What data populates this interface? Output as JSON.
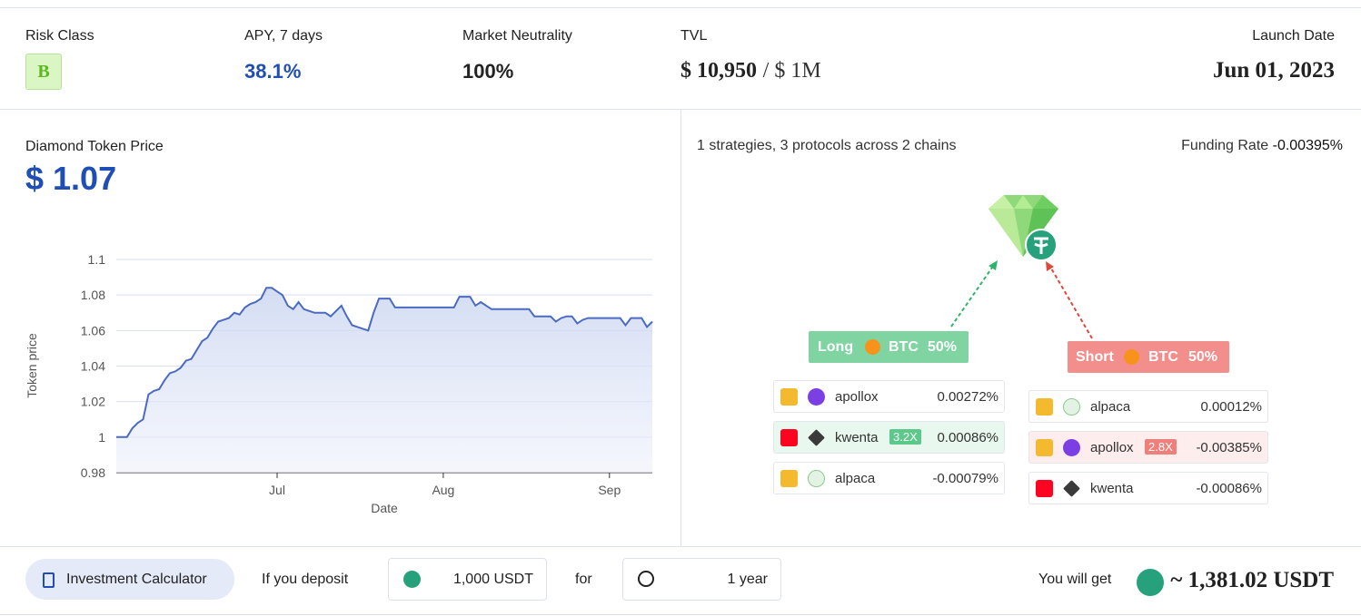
{
  "stats": [
    {
      "label": "Risk Class",
      "value": "B"
    },
    {
      "label": "APY, 7 days",
      "value": "38.1%"
    },
    {
      "label": "Market Neutrality",
      "value": "100%"
    },
    {
      "label": "TVL",
      "value": "$ 10,950",
      "cap": "/ $ 1M"
    },
    {
      "label": "Launch Date",
      "value": "Jun 01, 2023"
    }
  ],
  "price": {
    "label": "Diamond Token Price",
    "value": "$ 1.07"
  },
  "chart_data": {
    "type": "line",
    "x_label": "Date",
    "y_label": "Token price",
    "categories": [
      null,
      null,
      null,
      null,
      null,
      null,
      null,
      null,
      null,
      null,
      null,
      null,
      null,
      null,
      null,
      null,
      null,
      null,
      null,
      null,
      null,
      null,
      null,
      null,
      null,
      null,
      null,
      null,
      null,
      null,
      "Jul",
      null,
      null,
      null,
      null,
      null,
      null,
      null,
      null,
      null,
      null,
      null,
      null,
      null,
      null,
      null,
      null,
      null,
      null,
      null,
      null,
      null,
      null,
      null,
      null,
      null,
      null,
      null,
      null,
      null,
      null,
      "Aug",
      null,
      null,
      null,
      null,
      null,
      null,
      null,
      null,
      null,
      null,
      null,
      null,
      null,
      null,
      null,
      null,
      null,
      null,
      null,
      null,
      null,
      null,
      null,
      null,
      null,
      null,
      null,
      null,
      null,
      null,
      "Sep",
      null,
      null,
      null,
      null,
      null,
      null,
      null,
      null
    ],
    "series": [
      {
        "name": "Token price",
        "color": "#4a6bc1",
        "values": [
          1.0,
          1.0,
          1.0,
          1.005,
          1.008,
          1.01,
          1.024,
          1.026,
          1.027,
          1.032,
          1.036,
          1.037,
          1.039,
          1.043,
          1.044,
          1.049,
          1.054,
          1.056,
          1.061,
          1.065,
          1.066,
          1.067,
          1.07,
          1.069,
          1.073,
          1.075,
          1.076,
          1.078,
          1.084,
          1.084,
          1.082,
          1.08,
          1.074,
          1.072,
          1.076,
          1.072,
          1.071,
          1.07,
          1.07,
          1.07,
          1.068,
          1.071,
          1.074,
          1.068,
          1.063,
          1.062,
          1.061,
          1.06,
          1.07,
          1.078,
          1.078,
          1.078,
          1.073,
          1.073,
          1.073,
          1.073,
          1.073,
          1.073,
          1.073,
          1.073,
          1.073,
          1.073,
          1.073,
          1.073,
          1.079,
          1.079,
          1.079,
          1.074,
          1.076,
          1.074,
          1.072,
          1.072,
          1.072,
          1.072,
          1.072,
          1.072,
          1.072,
          1.072,
          1.068,
          1.068,
          1.068,
          1.068,
          1.065,
          1.067,
          1.068,
          1.068,
          1.064,
          1.066,
          1.067,
          1.067,
          1.067,
          1.067,
          1.067,
          1.067,
          1.067,
          1.063,
          1.067,
          1.067,
          1.067,
          1.062,
          1.065
        ]
      }
    ],
    "ylim": [
      0.98,
      1.1
    ],
    "yticks": [
      0.98,
      1,
      1.02,
      1.04,
      1.06,
      1.08,
      1.1
    ],
    "grid": true
  },
  "strategy": {
    "summary": "1 strategies, 3 protocols across 2 chains",
    "funding_label": "Funding Rate",
    "funding_value": "-0.00395%"
  },
  "long": {
    "label": "Long",
    "asset": "BTC",
    "share": "50%",
    "protocols": [
      {
        "name": "apollox",
        "rate": "0.00272%"
      },
      {
        "name": "kwenta",
        "leverage": "3.2X",
        "rate": "0.00086%"
      },
      {
        "name": "alpaca",
        "rate": "-0.00079%"
      }
    ]
  },
  "short": {
    "label": "Short",
    "asset": "BTC",
    "share": "50%",
    "protocols": [
      {
        "name": "alpaca",
        "rate": "0.00012%"
      },
      {
        "name": "apollox",
        "leverage": "2.8X",
        "rate": "-0.00385%"
      },
      {
        "name": "kwenta",
        "rate": "-0.00086%"
      }
    ]
  },
  "calculator": {
    "button": "Investment Calculator",
    "deposit_label": "If you deposit",
    "deposit": "1,000 USDT",
    "for_label": "for",
    "period": "1 year",
    "result_label": "You will get",
    "result": "~ 1,381.02 USDT"
  }
}
